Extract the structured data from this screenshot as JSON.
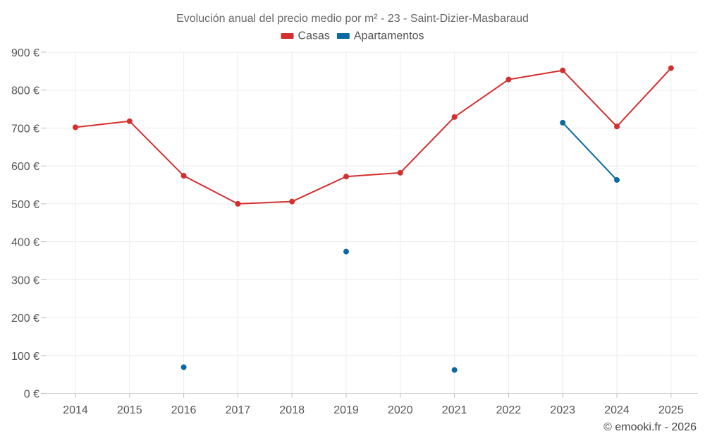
{
  "chart_data": {
    "type": "line",
    "title": "Evolución anual del precio medio por m² - 23 - Saint-Dizier-Masbaraud",
    "categories": [
      "2014",
      "2015",
      "2016",
      "2017",
      "2018",
      "2019",
      "2020",
      "2021",
      "2022",
      "2023",
      "2024",
      "2025"
    ],
    "ylim": [
      0,
      900
    ],
    "yticks": [
      0,
      100,
      200,
      300,
      400,
      500,
      600,
      700,
      800,
      900
    ],
    "y_tick_labels": [
      "0 €",
      "100 €",
      "200 €",
      "300 €",
      "400 €",
      "500 €",
      "600 €",
      "700 €",
      "800 €",
      "900 €"
    ],
    "grid": true,
    "legend_position": "top-center",
    "series": [
      {
        "name": "Casas",
        "color": "#d32f2f",
        "values": [
          702,
          718,
          574,
          500,
          506,
          572,
          582,
          729,
          828,
          852,
          704,
          858
        ]
      },
      {
        "name": "Apartamentos",
        "color": "#0a6aa1",
        "values": [
          null,
          null,
          69,
          null,
          null,
          374,
          null,
          62,
          null,
          714,
          563,
          null
        ]
      }
    ]
  },
  "credit": "© emooki.fr - 2026"
}
